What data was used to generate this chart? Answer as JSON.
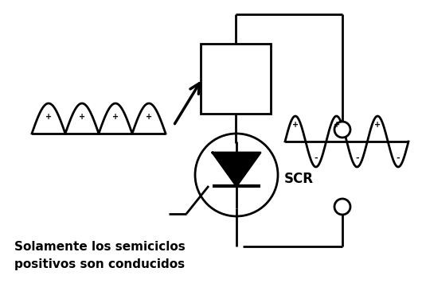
{
  "fig_width": 5.3,
  "fig_height": 3.61,
  "dpi": 100,
  "bg_color": "#ffffff",
  "line_color": "#000000",
  "line_width": 2.0,
  "caption_line1": "Solamente los semiciclos",
  "caption_line2": "positivos son conducidos",
  "scr_label": "SCR"
}
